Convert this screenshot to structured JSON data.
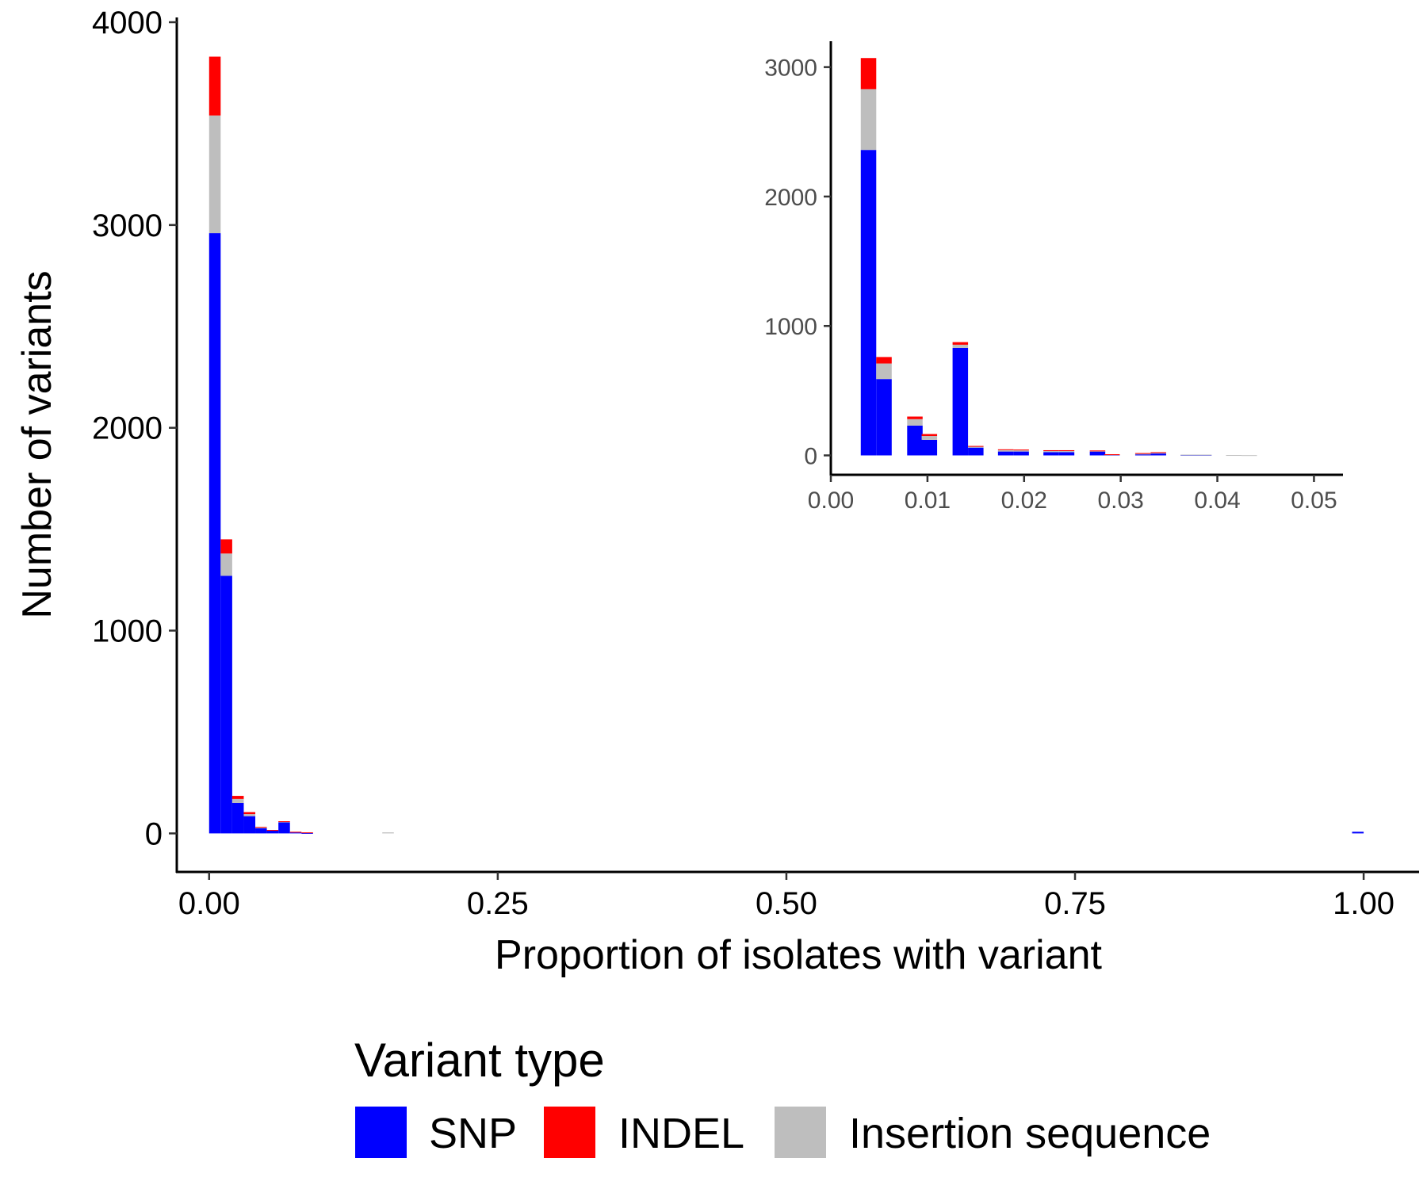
{
  "legend": {
    "title": "Variant type",
    "items": [
      {
        "label": "SNP",
        "color": "#0000FF"
      },
      {
        "label": "INDEL",
        "color": "#FF0000"
      },
      {
        "label": "Insertion sequence",
        "color": "#BEBEBE"
      }
    ]
  },
  "chart_data": [
    {
      "type": "bar",
      "stacked": true,
      "xlabel": "Proportion of isolates with variant",
      "ylabel": "Number of variants",
      "xlim": [
        -0.028,
        1.048
      ],
      "ylim": [
        -190,
        4000
      ],
      "xticks": [
        "0.00",
        "0.25",
        "0.50",
        "0.75",
        "1.00"
      ],
      "xtick_values": [
        0,
        0.25,
        0.5,
        0.75,
        1.0
      ],
      "yticks": [
        "0",
        "1000",
        "2000",
        "3000",
        "4000"
      ],
      "ytick_values": [
        0,
        1000,
        2000,
        3000,
        4000
      ],
      "bin_width": 0.01,
      "x": [
        0.0,
        0.01,
        0.02,
        0.03,
        0.04,
        0.05,
        0.06,
        0.07,
        0.08,
        0.15,
        0.99
      ],
      "series": [
        {
          "name": "SNP",
          "color": "#0000FF",
          "values": [
            2960,
            1270,
            150,
            85,
            25,
            15,
            55,
            5,
            2,
            0,
            8
          ]
        },
        {
          "name": "Insertion sequence",
          "color": "#BEBEBE",
          "values": [
            580,
            110,
            20,
            10,
            5,
            0,
            3,
            0,
            0,
            5,
            0
          ]
        },
        {
          "name": "INDEL",
          "color": "#FF0000",
          "values": [
            290,
            70,
            15,
            10,
            2,
            2,
            2,
            3,
            3,
            0,
            0
          ]
        }
      ],
      "grid": false
    },
    {
      "type": "bar",
      "stacked": true,
      "inset": true,
      "xlim": [
        0.0,
        0.053
      ],
      "ylim": [
        -150,
        3200
      ],
      "xticks": [
        "0.00",
        "0.01",
        "0.02",
        "0.03",
        "0.04",
        "0.05"
      ],
      "xtick_values": [
        0,
        0.01,
        0.02,
        0.03,
        0.04,
        0.05
      ],
      "yticks": [
        "0",
        "1000",
        "2000",
        "3000"
      ],
      "ytick_values": [
        0,
        1000,
        2000,
        3000
      ],
      "bin_width": 0.0016,
      "x": [
        0.0031,
        0.0047,
        0.0079,
        0.0094,
        0.0126,
        0.0142,
        0.0173,
        0.0189,
        0.022,
        0.0236,
        0.0268,
        0.0283,
        0.0315,
        0.0331,
        0.0362,
        0.0378,
        0.0409,
        0.0425
      ],
      "series": [
        {
          "name": "SNP",
          "color": "#0000FF",
          "values": [
            2360,
            590,
            230,
            120,
            830,
            60,
            30,
            30,
            25,
            25,
            30,
            5,
            10,
            15,
            4,
            4,
            0,
            0
          ]
        },
        {
          "name": "Insertion sequence",
          "color": "#BEBEBE",
          "values": [
            470,
            120,
            50,
            30,
            25,
            8,
            12,
            10,
            10,
            10,
            5,
            2,
            3,
            5,
            2,
            2,
            3,
            2
          ]
        },
        {
          "name": "INDEL",
          "color": "#FF0000",
          "values": [
            240,
            50,
            20,
            15,
            20,
            5,
            5,
            5,
            5,
            5,
            3,
            2,
            5,
            5,
            0,
            0,
            0,
            0
          ]
        }
      ],
      "grid": false
    }
  ]
}
